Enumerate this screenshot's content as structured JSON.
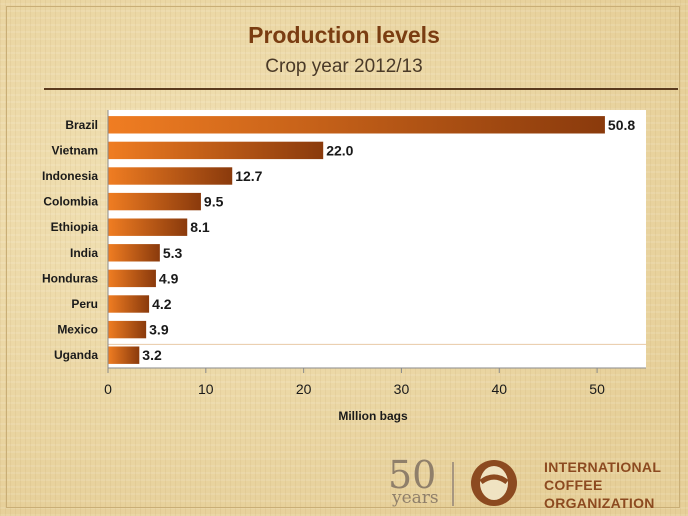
{
  "chart_data": {
    "type": "bar",
    "orientation": "horizontal",
    "title": "Production levels",
    "subtitle": "Crop year 2012/13",
    "categories": [
      "Brazil",
      "Vietnam",
      "Indonesia",
      "Colombia",
      "Ethiopia",
      "India",
      "Honduras",
      "Peru",
      "Mexico",
      "Uganda"
    ],
    "values": [
      50.8,
      22.0,
      12.7,
      9.5,
      8.1,
      5.3,
      4.9,
      4.2,
      3.9,
      3.2
    ],
    "value_labels": [
      "50.8",
      "22.0",
      "12.7",
      "9.5",
      "8.1",
      "5.3",
      "4.9",
      "4.2",
      "3.9",
      "3.2"
    ],
    "xlabel": "Million bags",
    "ylabel": "",
    "xlim": [
      0,
      55
    ],
    "xticks": [
      0,
      10,
      20,
      30,
      40,
      50
    ],
    "grid": false,
    "colors": {
      "bar_dark": "#8a3a0c",
      "bar_light": "#f07d22",
      "title": "#7a3d12"
    }
  },
  "footer": {
    "anniversary_number": "50",
    "anniversary_word": "years",
    "org_lines": [
      "INTERNATIONAL",
      "COFFEE",
      "ORGANIZATION"
    ],
    "logo_icon": "coffee-bean-circle-icon"
  }
}
